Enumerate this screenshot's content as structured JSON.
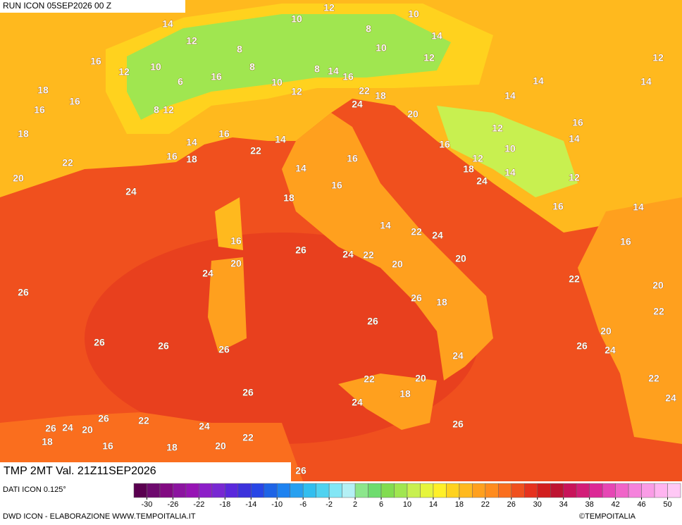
{
  "header": {
    "run": "RUN ICON 05SEP2026 00 Z"
  },
  "footer": {
    "variable": "TMP 2MT Val. 21Z11SEP2026",
    "source": "DATI ICON 0.125°",
    "credit": "DWD ICON - ELABORAZIONE WWW.TEMPOITALIA.IT",
    "copyright": "©TEMPOITALIA"
  },
  "colorbar": {
    "colors": [
      "#5a0050",
      "#6e0a6e",
      "#820a82",
      "#8c14a0",
      "#9614b4",
      "#8c1ec8",
      "#7828d2",
      "#5a28dc",
      "#3c32dc",
      "#2846e6",
      "#1e64e6",
      "#1e82f0",
      "#28a0f0",
      "#32beef",
      "#50d2f0",
      "#82e6f5",
      "#b4f0f5",
      "#8ce68c",
      "#6edc6e",
      "#82dc50",
      "#a0e650",
      "#c8f050",
      "#e6f53c",
      "#fff028",
      "#ffd21e",
      "#ffb91e",
      "#ffa01e",
      "#ff8c1e",
      "#fa6e1e",
      "#f0501e",
      "#e6321e",
      "#d21e1e",
      "#be1432",
      "#c8145a",
      "#d21e78",
      "#dc2896",
      "#e646b4",
      "#f064c8",
      "#f582dc",
      "#fa9ce6",
      "#ffb4f0",
      "#ffc8f5"
    ],
    "ticks": [
      -30,
      -26,
      -22,
      -18,
      -14,
      -10,
      -6,
      -2,
      2,
      6,
      10,
      14,
      18,
      22,
      26,
      30,
      34,
      38,
      42,
      46,
      50
    ]
  },
  "map_labels": [
    14,
    10,
    12,
    10,
    8,
    14,
    12,
    8,
    10,
    12,
    12,
    16,
    12,
    10,
    8,
    8,
    14,
    16,
    6,
    16,
    10,
    12,
    22,
    18,
    18,
    14,
    14,
    14,
    16,
    16,
    8,
    12,
    24,
    20,
    18,
    16,
    12,
    16,
    14,
    14,
    22,
    16,
    14,
    16,
    18,
    16,
    12,
    10,
    22,
    14,
    18,
    14,
    20,
    16,
    24,
    12,
    24,
    18,
    16,
    14,
    14,
    22,
    24,
    16,
    16,
    26,
    24,
    22,
    20,
    20,
    20,
    24,
    22,
    20,
    26,
    26,
    18,
    22,
    26,
    20,
    26,
    26,
    26,
    26,
    24,
    24,
    22,
    20,
    22,
    26,
    18,
    24,
    24,
    26,
    22,
    26,
    24,
    20,
    24,
    26,
    22,
    18,
    16,
    18,
    20,
    26
  ]
}
